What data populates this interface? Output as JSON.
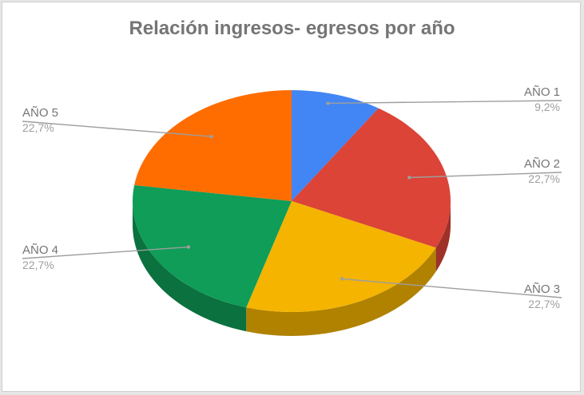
{
  "chart_data": {
    "type": "pie",
    "style": "3d",
    "title": "Relación ingresos- egresos por año",
    "categories": [
      "AÑO 1",
      "AÑO 2",
      "AÑO 3",
      "AÑO 4",
      "AÑO 5"
    ],
    "values": [
      9.2,
      22.7,
      22.7,
      22.7,
      22.7
    ],
    "value_labels": [
      "9,2%",
      "22,7%",
      "22,7%",
      "22,7%",
      "22,7%"
    ],
    "colors": [
      "#4285f4",
      "#db4437",
      "#f4b400",
      "#0f9d58",
      "#ff6d00"
    ],
    "label_color": "#757575",
    "legend": "none (labels beside slices)"
  }
}
